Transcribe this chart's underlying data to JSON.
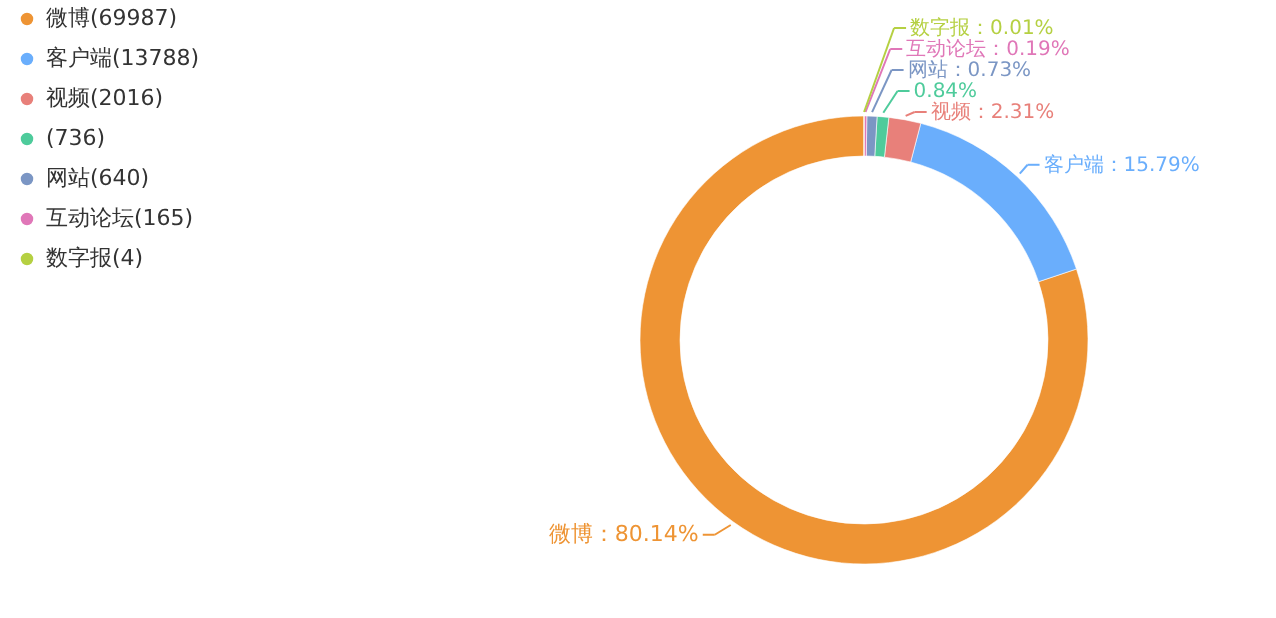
{
  "chart_data": {
    "type": "donut",
    "categories": [
      "微博(69987)",
      "客户端(13788)",
      "视频(2016)",
      "(736)",
      "网站(640)",
      "互动论坛(165)",
      "数字报(4)"
    ],
    "values": [
      80.14,
      15.79,
      2.31,
      0.84,
      0.73,
      0.19,
      0.01
    ],
    "colors": [
      "#ee9434",
      "#6aaefc",
      "#e8807a",
      "#4ecb9b",
      "#7b96c4",
      "#e077b8",
      "#b5d042"
    ],
    "value_labels": [
      "微博：80.14%",
      "客户端：15.79%",
      "视频：2.31%",
      "0.84%",
      "网站：0.73%",
      "互动论坛：0.19%",
      "数字报：0.01%"
    ],
    "legend": "top left"
  }
}
